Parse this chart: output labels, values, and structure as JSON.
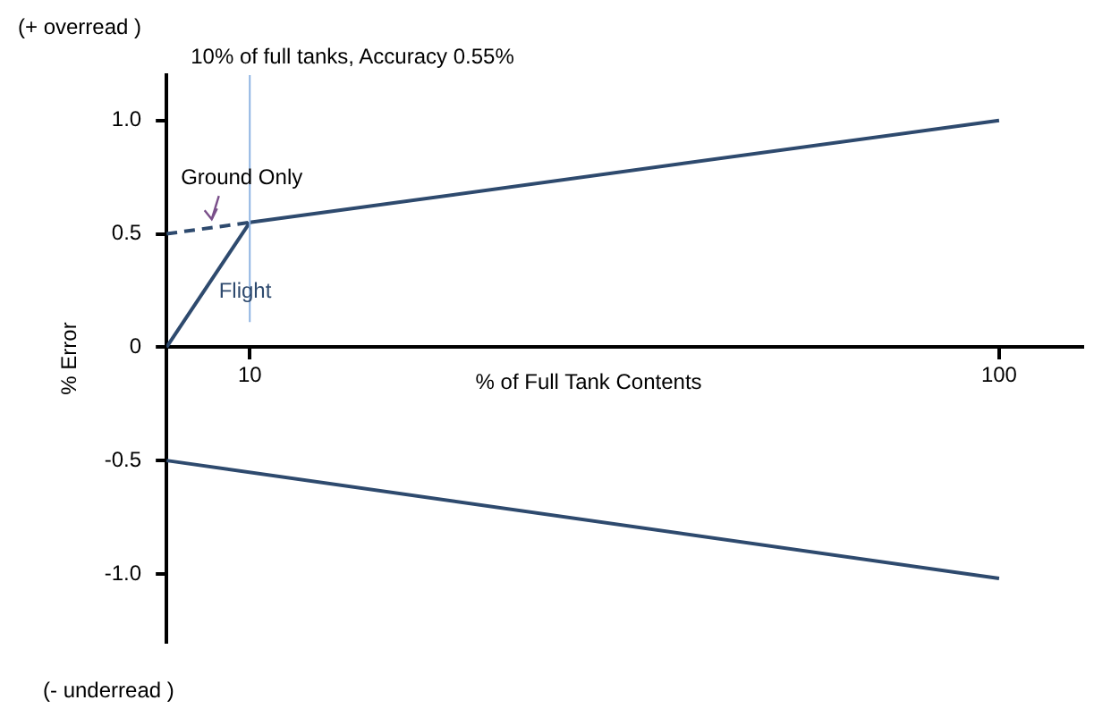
{
  "chart_data": {
    "type": "line",
    "xlabel": "% of Full Tank Contents",
    "ylabel": "% Error",
    "xlim": [
      0,
      110
    ],
    "xticks": [
      10,
      100
    ],
    "ylim": [
      -1.3,
      1.2
    ],
    "yticks": [
      {
        "value": 1,
        "label": "1.0"
      },
      {
        "value": 0.5,
        "label": "0.5"
      },
      0,
      {
        "value": -0.5,
        "label": "-0.5"
      },
      {
        "value": -1,
        "label": "-1.0"
      }
    ],
    "grid": false,
    "legend": false,
    "marker": "none",
    "series": [
      {
        "color": "#2e4a6e",
        "x": [
          10,
          100
        ],
        "values": [
          0.55,
          1.0
        ]
      },
      {
        "name": "Ground Only",
        "color": "#2e4a6e",
        "line_style": "dashed",
        "x": [
          0,
          10
        ],
        "values": [
          0.5,
          0.55
        ]
      },
      {
        "name": "Flight",
        "color": "#2e4a6e",
        "x": [
          0,
          10
        ],
        "values": [
          0,
          0.55
        ]
      },
      {
        "color": "#2e4a6e",
        "x": [
          0,
          100
        ],
        "values": [
          -0.5,
          -1.02
        ]
      }
    ],
    "ref_lines": [
      {
        "axis": "x",
        "value": 10,
        "label": "10% of full tanks, Accuracy 0.55%",
        "color": "#8fb4e3"
      }
    ],
    "annotations": [
      "(+ overread )",
      "(- underread )"
    ]
  }
}
